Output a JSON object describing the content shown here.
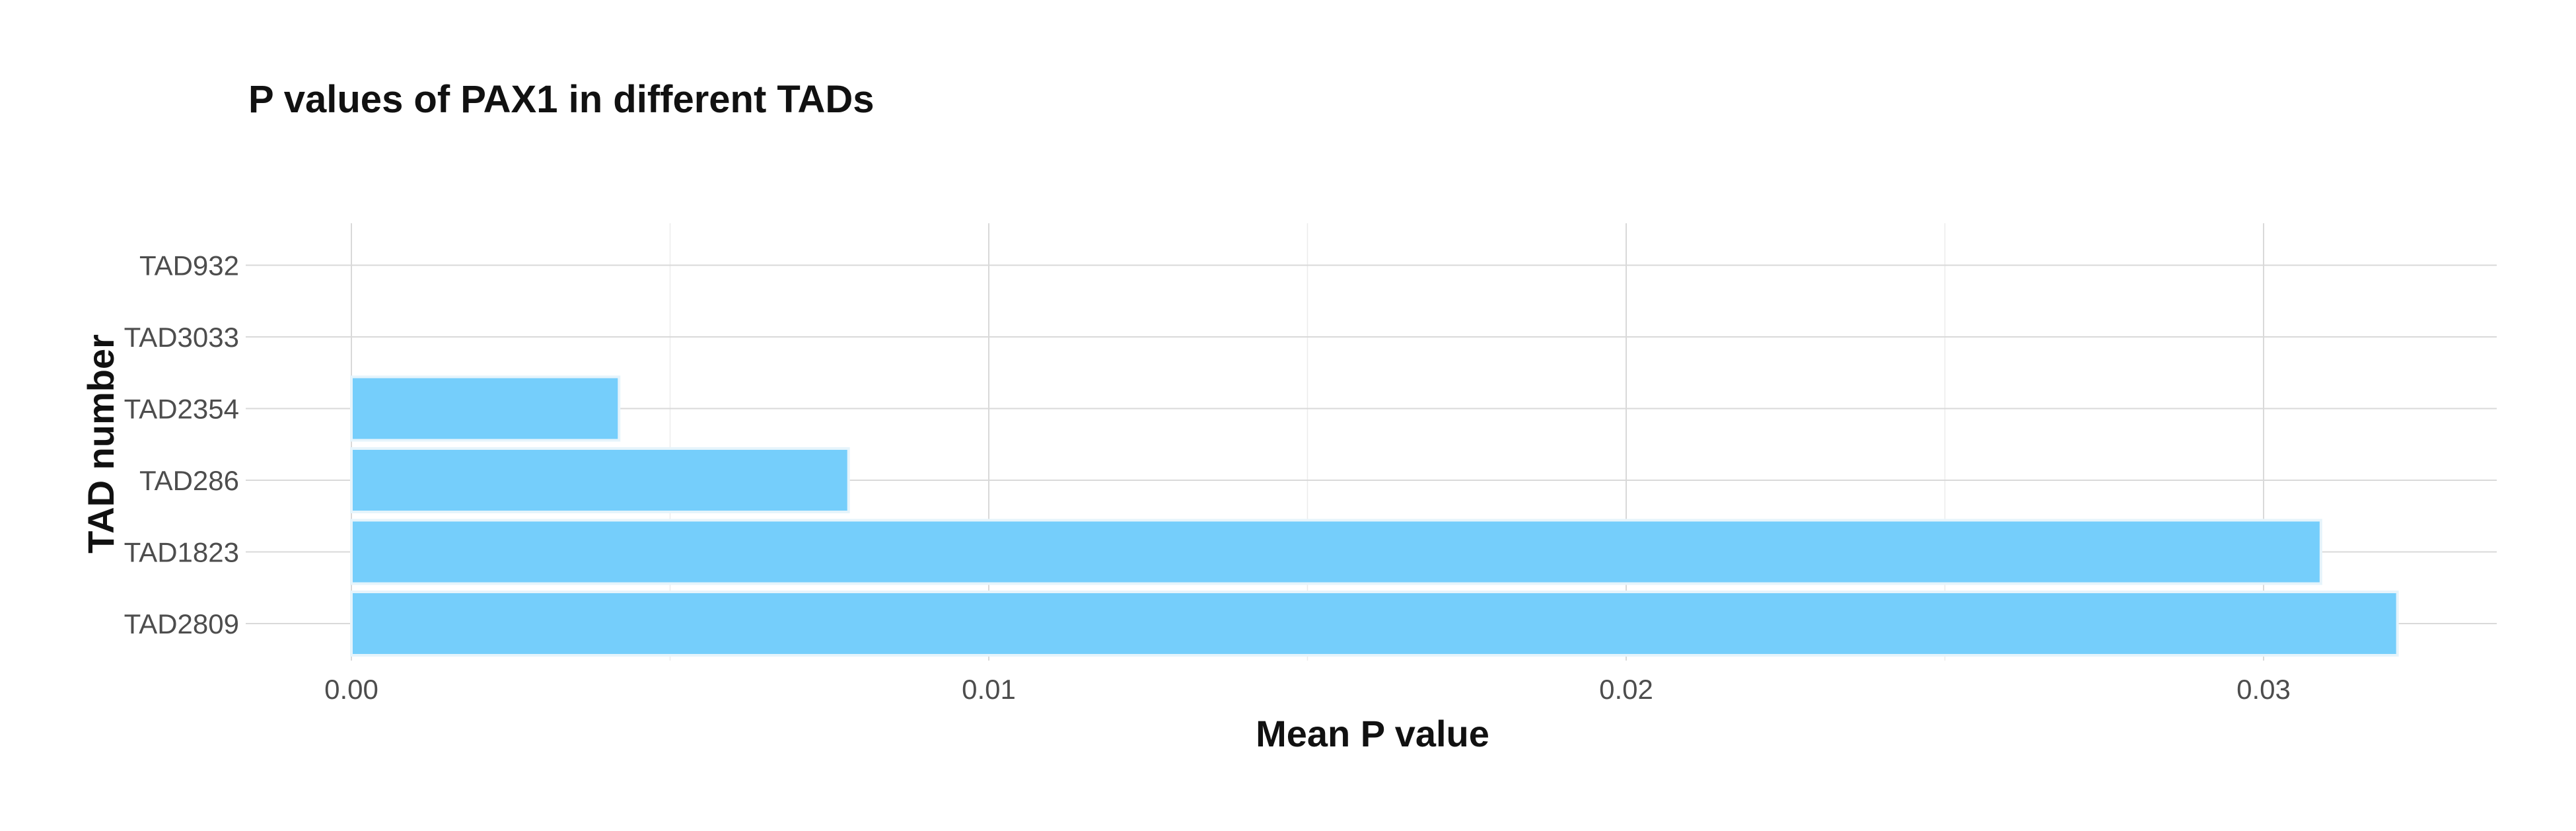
{
  "chart_data": {
    "type": "bar",
    "orientation": "horizontal",
    "title": "P values of PAX1 in different TADs",
    "xlabel": "Mean P value",
    "ylabel": "TAD number",
    "categories": [
      "TAD2809",
      "TAD1823",
      "TAD286",
      "TAD2354",
      "TAD3033",
      "TAD932"
    ],
    "values": [
      0.0321,
      0.0309,
      0.0078,
      0.0042,
      0.0,
      0.0
    ],
    "xlim": [
      0.0,
      0.0335
    ],
    "x_ticks": [
      0.0,
      0.01,
      0.02,
      0.03
    ],
    "x_tick_labels": [
      "0.00",
      "0.01",
      "0.02",
      "0.03"
    ],
    "grid": true,
    "legend": "none",
    "bar_color": "#75CEFB"
  }
}
